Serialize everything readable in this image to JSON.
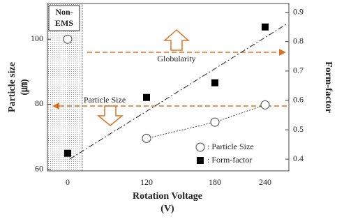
{
  "chart_data": {
    "type": "scatter",
    "x_label": "Rotation Voltage",
    "x_unit": "(V)",
    "y_label": "Particle size",
    "y_unit": "(㎛)",
    "y2_label": "Form-factor",
    "categories": [
      "0",
      "120",
      "180",
      "240"
    ],
    "series": [
      {
        "name": ": Particle Size",
        "color": "#444444",
        "values": [
          100,
          69.5,
          74.5,
          79.8
        ]
      },
      {
        "name": ": Form-factor",
        "color": "#000000",
        "axis": "y2",
        "values": [
          0.42,
          0.61,
          0.66,
          0.85
        ]
      }
    ],
    "ylim": [
      59.5,
      111
    ],
    "yticks": [
      60,
      80,
      100
    ],
    "y2lim": [
      0.36,
      0.93
    ],
    "y2ticks": [
      0.4,
      0.5,
      0.6,
      0.7,
      0.8,
      0.9
    ],
    "annotations": {
      "region": [
        "Non-",
        "EMS"
      ],
      "globularity": "Globularity",
      "particle_size": "Particle Size"
    }
  }
}
